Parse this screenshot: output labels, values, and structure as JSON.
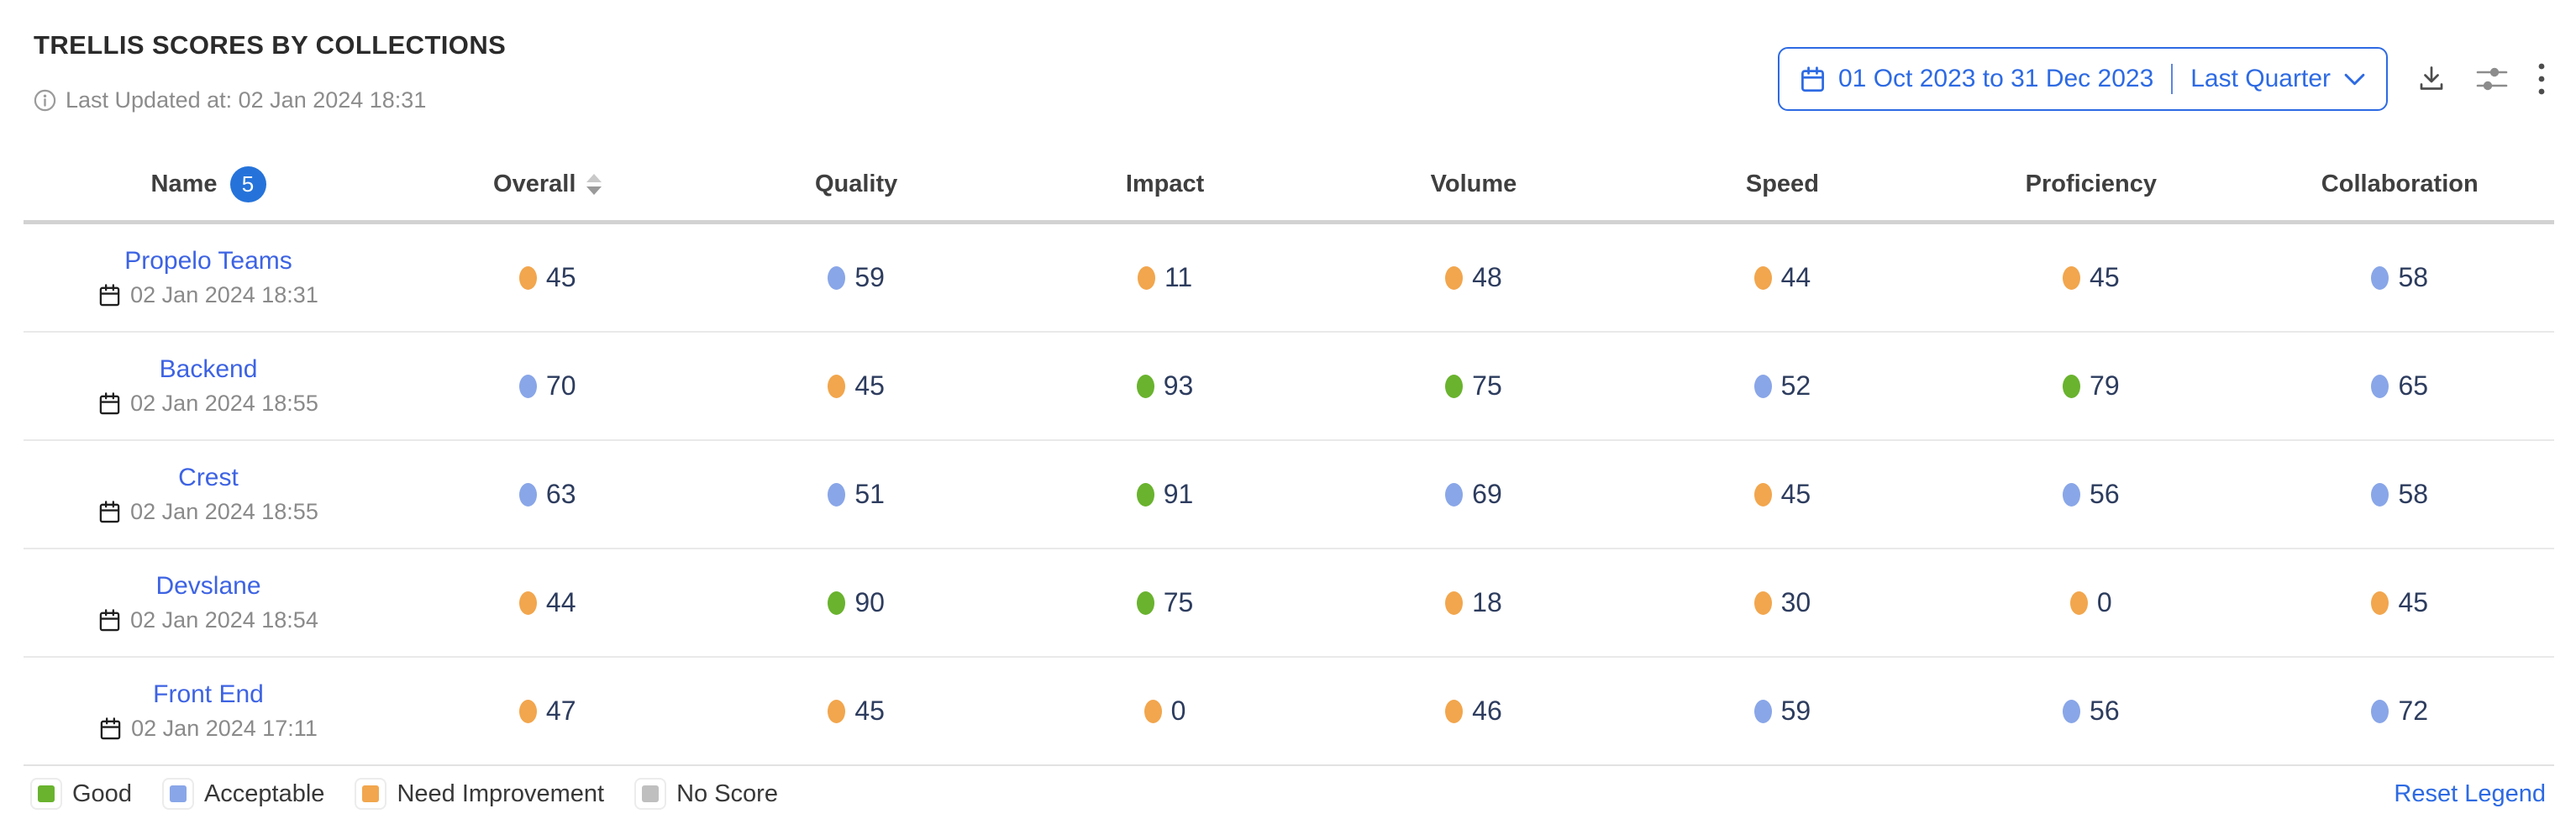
{
  "widget": {
    "title": "TRELLIS SCORES BY COLLECTIONS",
    "last_updated": "Last Updated at: 02 Jan 2024 18:31"
  },
  "toolbar": {
    "date_range": "01 Oct 2023 to 31 Dec 2023",
    "date_preset": "Last Quarter",
    "icons": [
      "calendar-icon",
      "chevron-down-icon",
      "download-icon",
      "filter-sliders-icon",
      "kebab-menu-icon"
    ]
  },
  "table": {
    "columns": [
      "Name",
      "Overall",
      "Quality",
      "Impact",
      "Volume",
      "Speed",
      "Proficiency",
      "Collaboration"
    ],
    "name_count_badge": "5",
    "rows": [
      {
        "name": "Propelo Teams",
        "updated": "02 Jan 2024 18:31",
        "scores": [
          {
            "value": "45",
            "status": "need-improvement"
          },
          {
            "value": "59",
            "status": "acceptable"
          },
          {
            "value": "11",
            "status": "need-improvement"
          },
          {
            "value": "48",
            "status": "need-improvement"
          },
          {
            "value": "44",
            "status": "need-improvement"
          },
          {
            "value": "45",
            "status": "need-improvement"
          },
          {
            "value": "58",
            "status": "acceptable"
          }
        ]
      },
      {
        "name": "Backend",
        "updated": "02 Jan 2024 18:55",
        "scores": [
          {
            "value": "70",
            "status": "acceptable"
          },
          {
            "value": "45",
            "status": "need-improvement"
          },
          {
            "value": "93",
            "status": "good"
          },
          {
            "value": "75",
            "status": "good"
          },
          {
            "value": "52",
            "status": "acceptable"
          },
          {
            "value": "79",
            "status": "good"
          },
          {
            "value": "65",
            "status": "acceptable"
          }
        ]
      },
      {
        "name": "Crest",
        "updated": "02 Jan 2024 18:55",
        "scores": [
          {
            "value": "63",
            "status": "acceptable"
          },
          {
            "value": "51",
            "status": "acceptable"
          },
          {
            "value": "91",
            "status": "good"
          },
          {
            "value": "69",
            "status": "acceptable"
          },
          {
            "value": "45",
            "status": "need-improvement"
          },
          {
            "value": "56",
            "status": "acceptable"
          },
          {
            "value": "58",
            "status": "acceptable"
          }
        ]
      },
      {
        "name": "Devslane",
        "updated": "02 Jan 2024 18:54",
        "scores": [
          {
            "value": "44",
            "status": "need-improvement"
          },
          {
            "value": "90",
            "status": "good"
          },
          {
            "value": "75",
            "status": "good"
          },
          {
            "value": "18",
            "status": "need-improvement"
          },
          {
            "value": "30",
            "status": "need-improvement"
          },
          {
            "value": "0",
            "status": "need-improvement"
          },
          {
            "value": "45",
            "status": "need-improvement"
          }
        ]
      },
      {
        "name": "Front End",
        "updated": "02 Jan 2024 17:11",
        "scores": [
          {
            "value": "47",
            "status": "need-improvement"
          },
          {
            "value": "45",
            "status": "need-improvement"
          },
          {
            "value": "0",
            "status": "need-improvement"
          },
          {
            "value": "46",
            "status": "need-improvement"
          },
          {
            "value": "59",
            "status": "acceptable"
          },
          {
            "value": "56",
            "status": "acceptable"
          },
          {
            "value": "72",
            "status": "acceptable"
          }
        ]
      }
    ]
  },
  "legend": {
    "items": [
      {
        "label": "Good",
        "status": "good"
      },
      {
        "label": "Acceptable",
        "status": "acceptable"
      },
      {
        "label": "Need Improvement",
        "status": "need-improvement"
      },
      {
        "label": "No Score",
        "status": "no-score"
      }
    ],
    "reset_label": "Reset Legend"
  },
  "colors": {
    "good": "#69b32e",
    "acceptable": "#89a6e8",
    "need_improvement": "#f2a64d",
    "no_score": "#bfbfbf",
    "link_blue": "#3d63e3",
    "accent_blue": "#2d6ae3"
  }
}
